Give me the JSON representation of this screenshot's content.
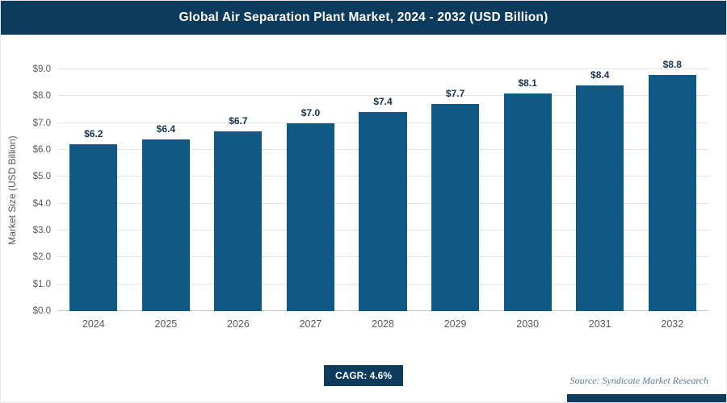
{
  "header": {
    "title": "Global Air Separation Plant Market, 2024 - 2032 (USD Billion)"
  },
  "chart_data": {
    "type": "bar",
    "title": "Global Air Separation Plant Market, 2024 - 2032 (USD Billion)",
    "categories": [
      "2024",
      "2025",
      "2026",
      "2027",
      "2028",
      "2029",
      "2030",
      "2031",
      "2032"
    ],
    "values": [
      6.2,
      6.4,
      6.7,
      7.0,
      7.4,
      7.7,
      8.1,
      8.4,
      8.8
    ],
    "bar_labels": [
      "$6.2",
      "$6.4",
      "$6.7",
      "$7.0",
      "$7.4",
      "$7.7",
      "$8.1",
      "$8.4",
      "$8.8"
    ],
    "xlabel": "",
    "ylabel": "Market Size (USD Billion)",
    "ylim": [
      0,
      9
    ],
    "ytick_step": 1,
    "ytick_labels": [
      "$0.0",
      "$1.0",
      "$2.0",
      "$3.0",
      "$4.0",
      "$5.0",
      "$6.0",
      "$7.0",
      "$8.0",
      "$9.0"
    ],
    "grid": true,
    "legend": false
  },
  "footer": {
    "cagr_label": "CAGR: 4.6%",
    "source": "Source: Syndicate Market Research"
  },
  "colors": {
    "header_bg": "#0d3b5e",
    "bar": "#0f5a85",
    "badge_bg": "#0d3b5e",
    "gridline": "#e3e3e3",
    "axis_text": "#595959",
    "value_label": "#16324f"
  }
}
